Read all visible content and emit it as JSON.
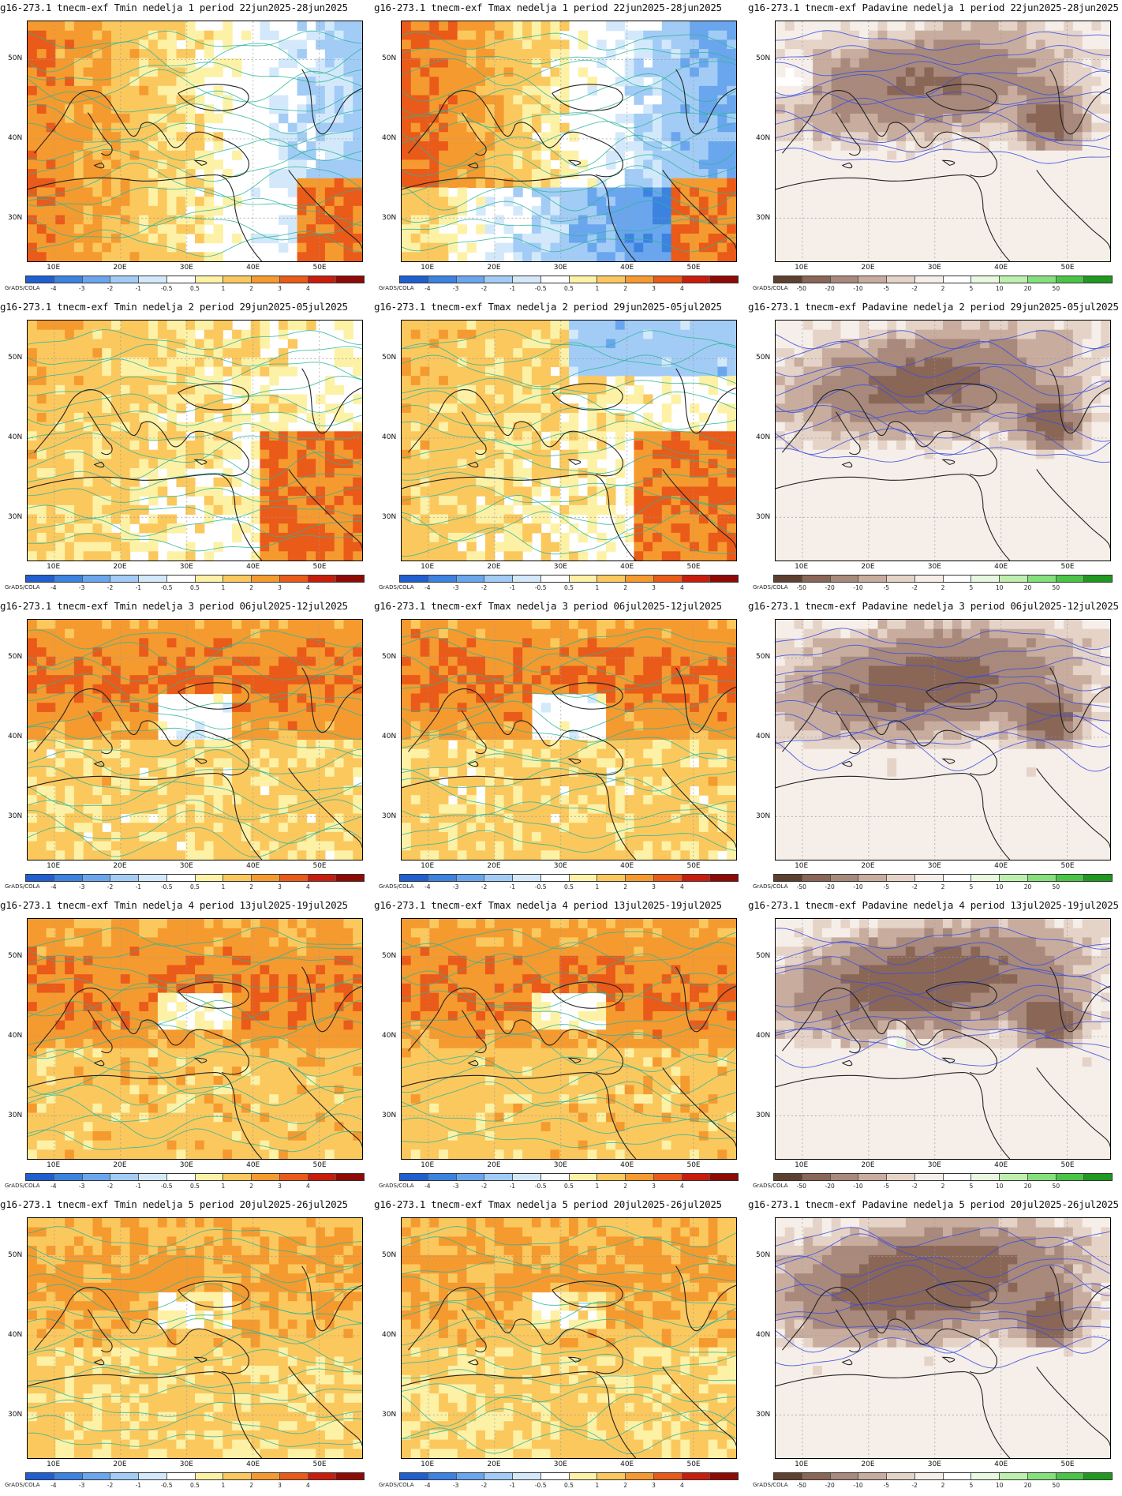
{
  "panels": [
    {
      "title": "g16-273.1 tnecm-exf Tmin nedelja 1 period 22jun2025-28jun2025",
      "variable": "tmin",
      "scale": "temp"
    },
    {
      "title": "g16-273.1 tnecm-exf Tmax nedelja 1 period 22jun2025-28jun2025",
      "variable": "tmax",
      "scale": "temp"
    },
    {
      "title": "g16-273.1 tnecm-exf Padavine nedelja 1 period 22jun2025-28jun2025",
      "variable": "precip",
      "scale": "precip"
    },
    {
      "title": "g16-273.1 tnecm-exf Tmin nedelja 2 period 29jun2025-05jul2025",
      "variable": "tmin",
      "scale": "temp"
    },
    {
      "title": "g16-273.1 tnecm-exf Tmax nedelja 2 period 29jun2025-05jul2025",
      "variable": "tmax",
      "scale": "temp"
    },
    {
      "title": "g16-273.1 tnecm-exf Padavine nedelja 2 period 29jun2025-05jul2025",
      "variable": "precip",
      "scale": "precip"
    },
    {
      "title": "g16-273.1 tnecm-exf Tmin nedelja 3 period 06jul2025-12jul2025",
      "variable": "tmin",
      "scale": "temp"
    },
    {
      "title": "g16-273.1 tnecm-exf Tmax nedelja 3 period 06jul2025-12jul2025",
      "variable": "tmax",
      "scale": "temp"
    },
    {
      "title": "g16-273.1 tnecm-exf Padavine nedelja 3 period 06jul2025-12jul2025",
      "variable": "precip",
      "scale": "precip"
    },
    {
      "title": "g16-273.1 tnecm-exf Tmin nedelja 4 period 13jul2025-19jul2025",
      "variable": "tmin",
      "scale": "temp"
    },
    {
      "title": "g16-273.1 tnecm-exf Tmax nedelja 4 period 13jul2025-19jul2025",
      "variable": "tmax",
      "scale": "temp"
    },
    {
      "title": "g16-273.1 tnecm-exf Padavine nedelja 4 period 13jul2025-19jul2025",
      "variable": "precip",
      "scale": "precip"
    },
    {
      "title": "g16-273.1 tnecm-exf Tmin nedelja 5 period 20jul2025-26jul2025",
      "variable": "tmin",
      "scale": "temp"
    },
    {
      "title": "g16-273.1 tnecm-exf Tmax nedelja 5 period 20jul2025-26jul2025",
      "variable": "tmax",
      "scale": "temp"
    },
    {
      "title": "g16-273.1 tnecm-exf Padavine nedelja 5 period 20jul2025-26jul2025",
      "variable": "precip",
      "scale": "precip"
    }
  ],
  "axes": {
    "lat_labels": [
      "50N",
      "40N",
      "30N"
    ],
    "lon_labels": [
      "10E",
      "20E",
      "30E",
      "40E",
      "50E"
    ]
  },
  "colorbars": {
    "credit": "GrADS/COLA",
    "temp": {
      "labels": [
        "-4",
        "-3",
        "-2",
        "-1",
        "-0.5",
        "0.5",
        "1",
        "2",
        "3",
        "4"
      ],
      "colors": [
        "#1f5fcf",
        "#3c82e0",
        "#6aa6ee",
        "#a2ccf6",
        "#d3e9fb",
        "#ffffff",
        "#fdf1a6",
        "#fbc85e",
        "#f59a2f",
        "#ea5a19",
        "#c81d0d",
        "#8f0a05"
      ]
    },
    "precip": {
      "labels": [
        "-50",
        "-20",
        "-10",
        "-5",
        "-2",
        "2",
        "5",
        "10",
        "20",
        "50"
      ],
      "colors": [
        "#5e4030",
        "#8a6656",
        "#a8897b",
        "#c8ad9f",
        "#e5d3c8",
        "#f6eee8",
        "#ffffff",
        "#e8f9e0",
        "#bdf0ad",
        "#84e07a",
        "#49c446",
        "#1f9a1f"
      ]
    }
  }
}
